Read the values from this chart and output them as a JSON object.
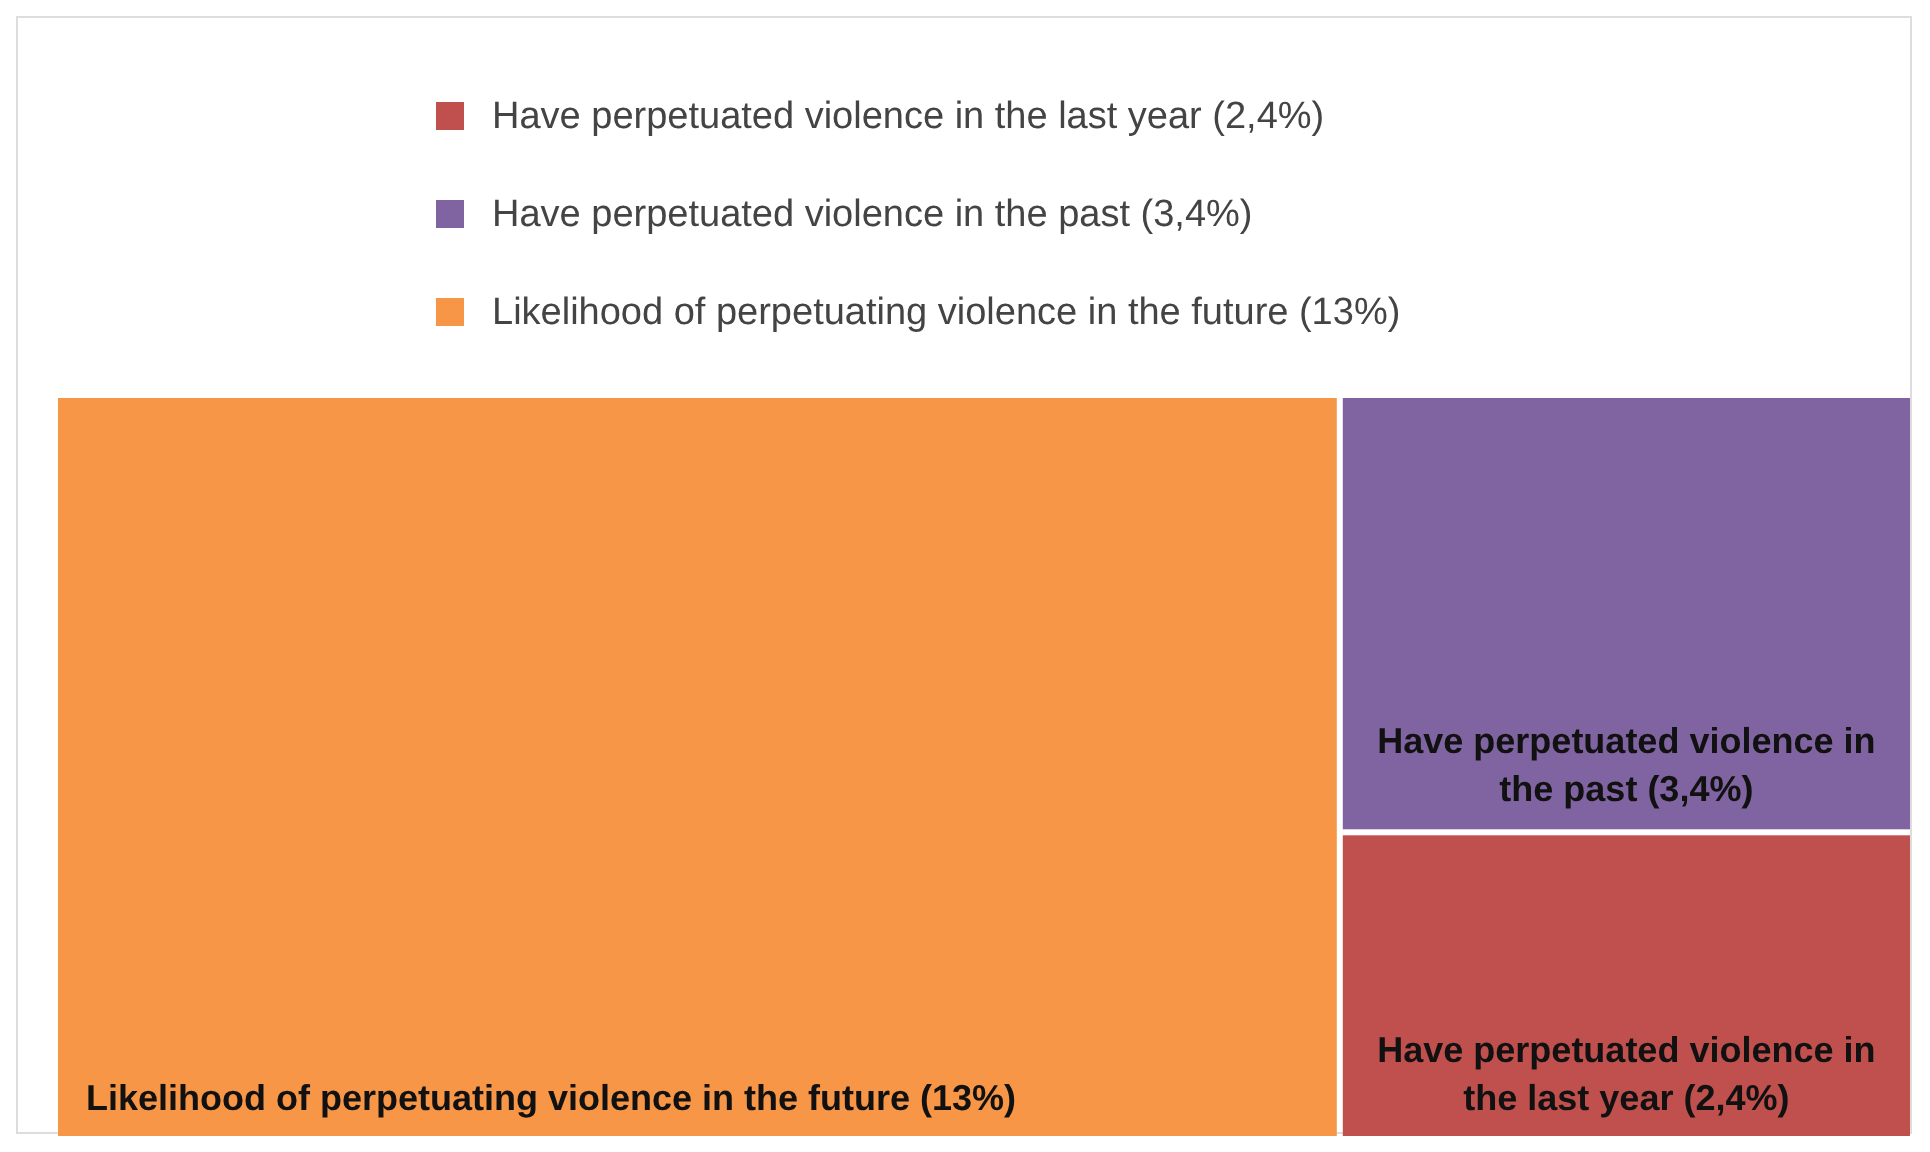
{
  "chart_data": {
    "type": "other",
    "categories": [
      "Have perpetuated violence in the last year",
      "Have perpetuated violence in the past",
      "Likelihood of perpetuating violence in the future"
    ],
    "values": [
      2.4,
      3.4,
      13
    ],
    "value_labels": [
      "(2,4%)",
      "(3,4%)",
      "(13%)"
    ],
    "colors": [
      "#c0504d",
      "#8064a2",
      "#f79646"
    ]
  }
}
